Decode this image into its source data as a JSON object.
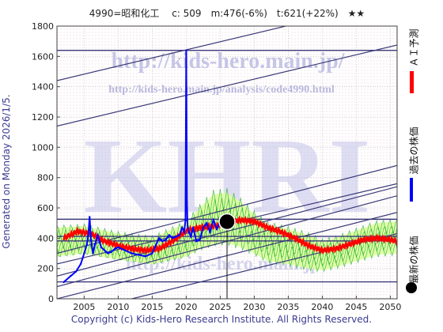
{
  "header": {
    "title": "4990=昭和化工　 c: 509　m:476(-6%)　t:621(+22%)　★★"
  },
  "side_label": "Generated on Monday 2026/1/5.",
  "legend": {
    "ai": "ＡＩ予測",
    "past": "過去の株価",
    "latest": "最新の株価"
  },
  "footer": "Copyright (c) Kids-Hero Research Institute. All Rights Reserved.",
  "watermarks": {
    "url_big": "http://kids-hero.main.jp/",
    "url_small": "http://kids-hero.main.jp/analysis/code4990.html",
    "logo": "KHRI",
    "url_bottom": "http://kids-hero.main.jp"
  },
  "colors": {
    "prediction": "#ff0000",
    "past": "#0000ff",
    "band": "#d8ff9a",
    "band_line": "#22aa22",
    "trend_lines": "#3a3a78",
    "watermark": "#b8b8e0",
    "background_dots": "#f0e0e8"
  },
  "chart_data": {
    "type": "line",
    "title": "",
    "xlabel": "",
    "ylabel": "",
    "xlim": [
      2001,
      2051
    ],
    "ylim": [
      0,
      1800
    ],
    "x_ticks": [
      2005,
      2010,
      2015,
      2020,
      2025,
      2030,
      2035,
      2040,
      2045,
      2050
    ],
    "y_ticks": [
      0,
      200,
      400,
      600,
      800,
      1000,
      1200,
      1400,
      1600,
      1800
    ],
    "grid": true,
    "current": {
      "x": 2026.0,
      "y": 509
    },
    "horizontal_lines": [
      112,
      382,
      412,
      525,
      1640
    ],
    "trend_lines": [
      {
        "x": [
          2001,
          2051
        ],
        "y": [
          1440,
          1975
        ]
      },
      {
        "x": [
          2001,
          2051
        ],
        "y": [
          1140,
          1675
        ]
      },
      {
        "x": [
          2001,
          2051
        ],
        "y": [
          300,
          880
        ]
      },
      {
        "x": [
          2001,
          2051
        ],
        "y": [
          230,
          760
        ]
      },
      {
        "x": [
          2001,
          2051
        ],
        "y": [
          150,
          740
        ]
      },
      {
        "x": [
          2001,
          2051
        ],
        "y": [
          80,
          680
        ]
      },
      {
        "x": [
          2001,
          2051
        ],
        "y": [
          0,
          570
        ]
      },
      {
        "x": [
          2012,
          2051
        ],
        "y": [
          0,
          430
        ]
      }
    ],
    "past_prices": {
      "x": [
        2002.0,
        2003.0,
        2003.8,
        2004.5,
        2005.0,
        2005.4,
        2005.6,
        2005.8,
        2006.0,
        2006.3,
        2006.6,
        2007.0,
        2007.5,
        2008.0,
        2008.5,
        2009.0,
        2009.5,
        2010.0,
        2011.0,
        2012.0,
        2013.0,
        2014.0,
        2015.0,
        2015.5,
        2016.0,
        2016.5,
        2017.0,
        2017.5,
        2018.0,
        2018.5,
        2019.0,
        2019.4,
        2019.7,
        2019.9,
        2020.0,
        2020.1,
        2020.2,
        2020.4,
        2020.7,
        2021.0,
        2021.5,
        2022.0,
        2022.5,
        2023.0,
        2023.5,
        2024.0,
        2024.5,
        2025.0,
        2025.5,
        2026.0
      ],
      "y": [
        110,
        150,
        180,
        230,
        300,
        360,
        420,
        540,
        390,
        300,
        360,
        420,
        340,
        320,
        300,
        310,
        330,
        340,
        320,
        300,
        290,
        280,
        300,
        350,
        400,
        380,
        390,
        420,
        400,
        410,
        420,
        470,
        440,
        520,
        1640,
        640,
        480,
        440,
        410,
        470,
        380,
        390,
        470,
        500,
        440,
        520,
        460,
        510,
        480,
        509
      ]
    },
    "prediction": {
      "x": [
        2002,
        2004,
        2006,
        2008,
        2010,
        2012,
        2014,
        2016,
        2018,
        2020,
        2022,
        2024,
        2026,
        2028,
        2030,
        2032,
        2034,
        2036,
        2038,
        2040,
        2042,
        2044,
        2046,
        2048,
        2050,
        2051
      ],
      "y": [
        400,
        445,
        430,
        380,
        350,
        330,
        320,
        330,
        380,
        450,
        470,
        480,
        500,
        520,
        510,
        470,
        440,
        400,
        350,
        320,
        330,
        360,
        390,
        400,
        390,
        380
      ]
    },
    "band": {
      "x": [
        2001,
        2005,
        2010,
        2015,
        2020,
        2022,
        2024,
        2026,
        2028,
        2030,
        2032,
        2035,
        2038,
        2040,
        2042,
        2045,
        2048,
        2051
      ],
      "upper": [
        470,
        480,
        430,
        400,
        500,
        600,
        690,
        700,
        640,
        560,
        490,
        460,
        420,
        380,
        400,
        450,
        500,
        510
      ],
      "lower": [
        280,
        300,
        260,
        230,
        280,
        330,
        360,
        370,
        340,
        300,
        250,
        230,
        200,
        190,
        210,
        250,
        290,
        300
      ]
    }
  }
}
